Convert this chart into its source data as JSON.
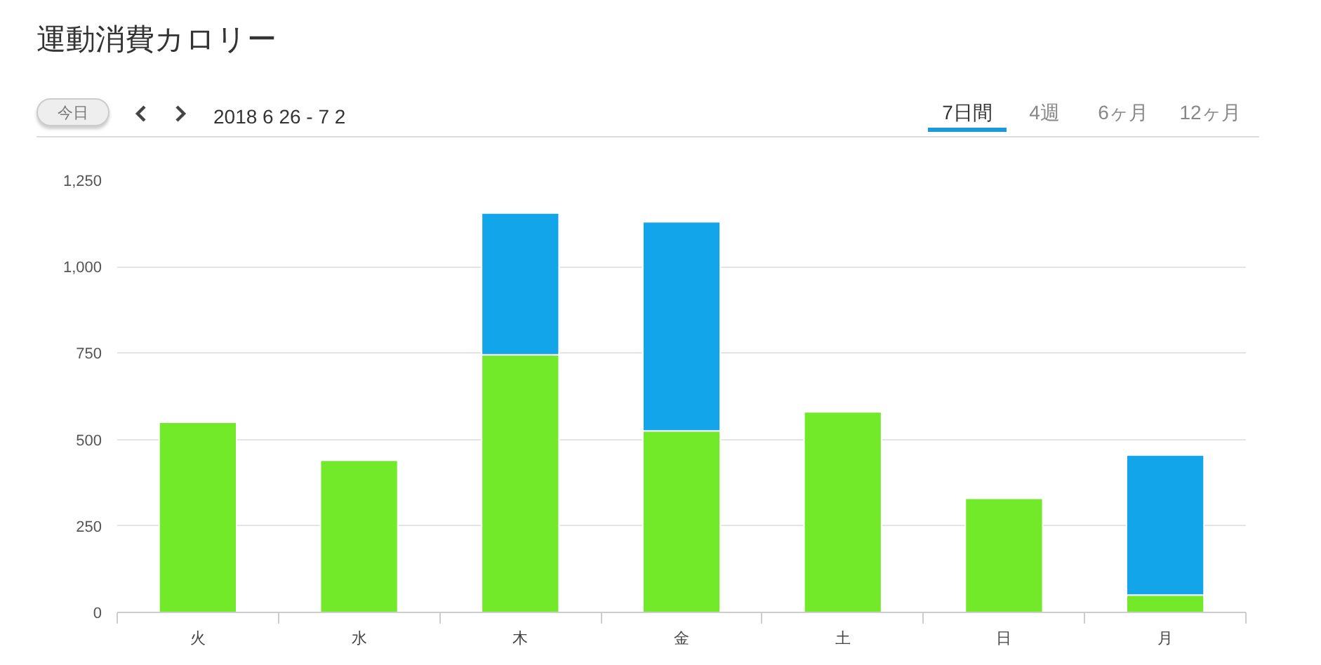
{
  "chart_data": {
    "type": "bar",
    "title": "運動消費カロリー",
    "subtitle": "2018 6 26 - 7 2",
    "annotations": [
      "今日",
      "7日間",
      "4週",
      "6ヶ月",
      "12ヶ月"
    ],
    "categories": [
      "火",
      "水",
      "木",
      "金",
      "土",
      "日",
      "月"
    ],
    "stacked": true,
    "series": [
      {
        "color": "#72e929",
        "values": [
          550,
          440,
          745,
          525,
          580,
          330,
          50
        ]
      },
      {
        "color": "#12a5ea",
        "values": [
          null,
          null,
          410,
          605,
          null,
          null,
          405
        ]
      }
    ],
    "ylim": [
      0,
      1250
    ],
    "yticks": [
      0,
      250,
      500,
      750,
      {
        "value": 1000,
        "label": "1,000"
      },
      {
        "value": 1250,
        "label": "1,250"
      }
    ],
    "grid": "y"
  }
}
